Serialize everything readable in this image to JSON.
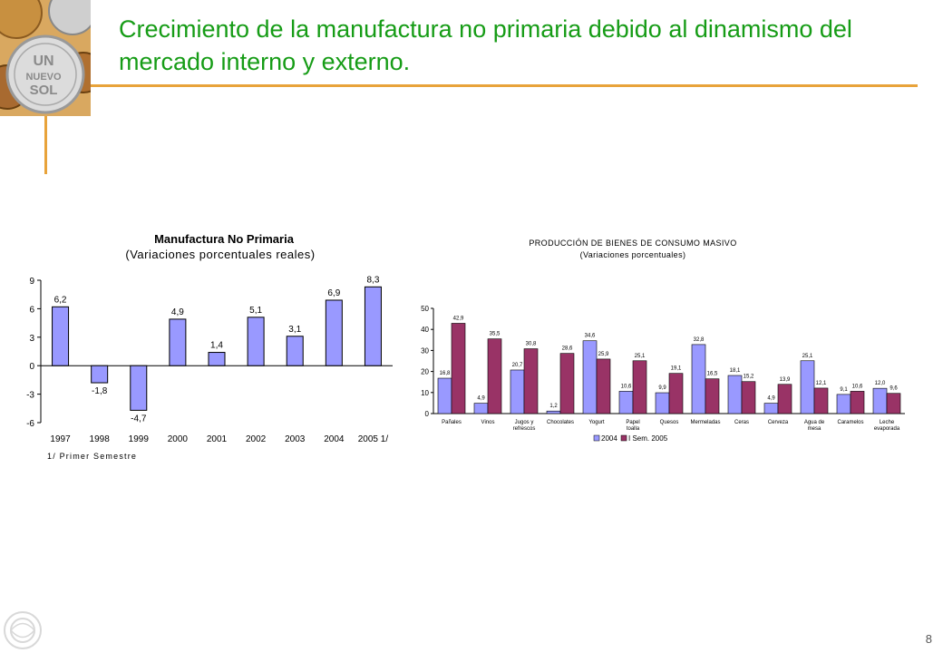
{
  "slide": {
    "title": "Crecimiento de la manufactura no primaria debido al dinamismo del mercado interno y externo.",
    "page_number": "8",
    "colors": {
      "title": "#169c16",
      "accent_rule": "#e8a33a"
    },
    "coin_logo_text": [
      "UN",
      "NUEVO",
      "SOL"
    ]
  },
  "chart_data": [
    {
      "type": "bar",
      "title": "Manufactura No Primaria",
      "subtitle": "(Variaciones porcentuales reales)",
      "categories": [
        "1997",
        "1998",
        "1999",
        "2000",
        "2001",
        "2002",
        "2003",
        "2004",
        "2005 1/"
      ],
      "values": [
        6.2,
        -1.8,
        -4.7,
        4.9,
        1.4,
        5.1,
        3.1,
        6.9,
        8.3
      ],
      "data_labels": [
        "6,2",
        "-1,8",
        "-4,7",
        "4,9",
        "1,4",
        "5,1",
        "3,1",
        "6,9",
        "8,3"
      ],
      "ylim": [
        -6,
        9
      ],
      "yticks": [
        9,
        6,
        3,
        0,
        -3,
        -6
      ],
      "footnote": "1/ Primer Semestre",
      "bar_color": "#9999ff",
      "grid": false
    },
    {
      "type": "bar",
      "title": "PRODUCCIÓN DE BIENES DE CONSUMO MASIVO",
      "subtitle": "(Variaciones porcentuales)",
      "categories": [
        "Pañales",
        "Vinos",
        "Jugos y refrescos",
        "Chocolates",
        "Yogurt",
        "Papel toalla",
        "Quesos",
        "Mermeladas",
        "Ceras",
        "Cerveza",
        "Agua de mesa",
        "Caramelos",
        "Leche evaporada"
      ],
      "category_lines": [
        [
          "Pañales"
        ],
        [
          "Vinos"
        ],
        [
          "Jugos y",
          "refrescos"
        ],
        [
          "Chocolates"
        ],
        [
          "Yogurt"
        ],
        [
          "Papel",
          "toalla"
        ],
        [
          "Quesos"
        ],
        [
          "Mermeladas"
        ],
        [
          "Ceras"
        ],
        [
          "Cerveza"
        ],
        [
          "Agua de",
          "mesa"
        ],
        [
          "Caramelos"
        ],
        [
          "Leche",
          "evaporada"
        ]
      ],
      "series": [
        {
          "name": "2004",
          "color": "#9999ff",
          "values": [
            16.8,
            4.9,
            20.7,
            1.2,
            34.6,
            10.6,
            9.9,
            32.8,
            18.1,
            4.9,
            25.1,
            9.1,
            12.0
          ],
          "data_labels": [
            "16,8",
            "4,9",
            "20,7",
            "1,2",
            "34,6",
            "10,6",
            "9,9",
            "32,8",
            "18,1",
            "4,9",
            "25,1",
            "9,1",
            "12,0"
          ]
        },
        {
          "name": "I Sem. 2005",
          "color": "#993366",
          "values": [
            42.9,
            35.5,
            30.8,
            28.6,
            25.9,
            25.1,
            19.1,
            16.5,
            15.2,
            13.9,
            12.1,
            10.6,
            9.6
          ],
          "data_labels": [
            "42,9",
            "35,5",
            "30,8",
            "28,6",
            "25,9",
            "25,1",
            "19,1",
            "16,5",
            "15,2",
            "13,9",
            "12,1",
            "10,6",
            "9,6"
          ]
        }
      ],
      "ylim": [
        0,
        50
      ],
      "yticks": [
        50,
        40,
        30,
        20,
        10,
        0
      ],
      "legend_position": "bottom",
      "grid": false
    }
  ]
}
